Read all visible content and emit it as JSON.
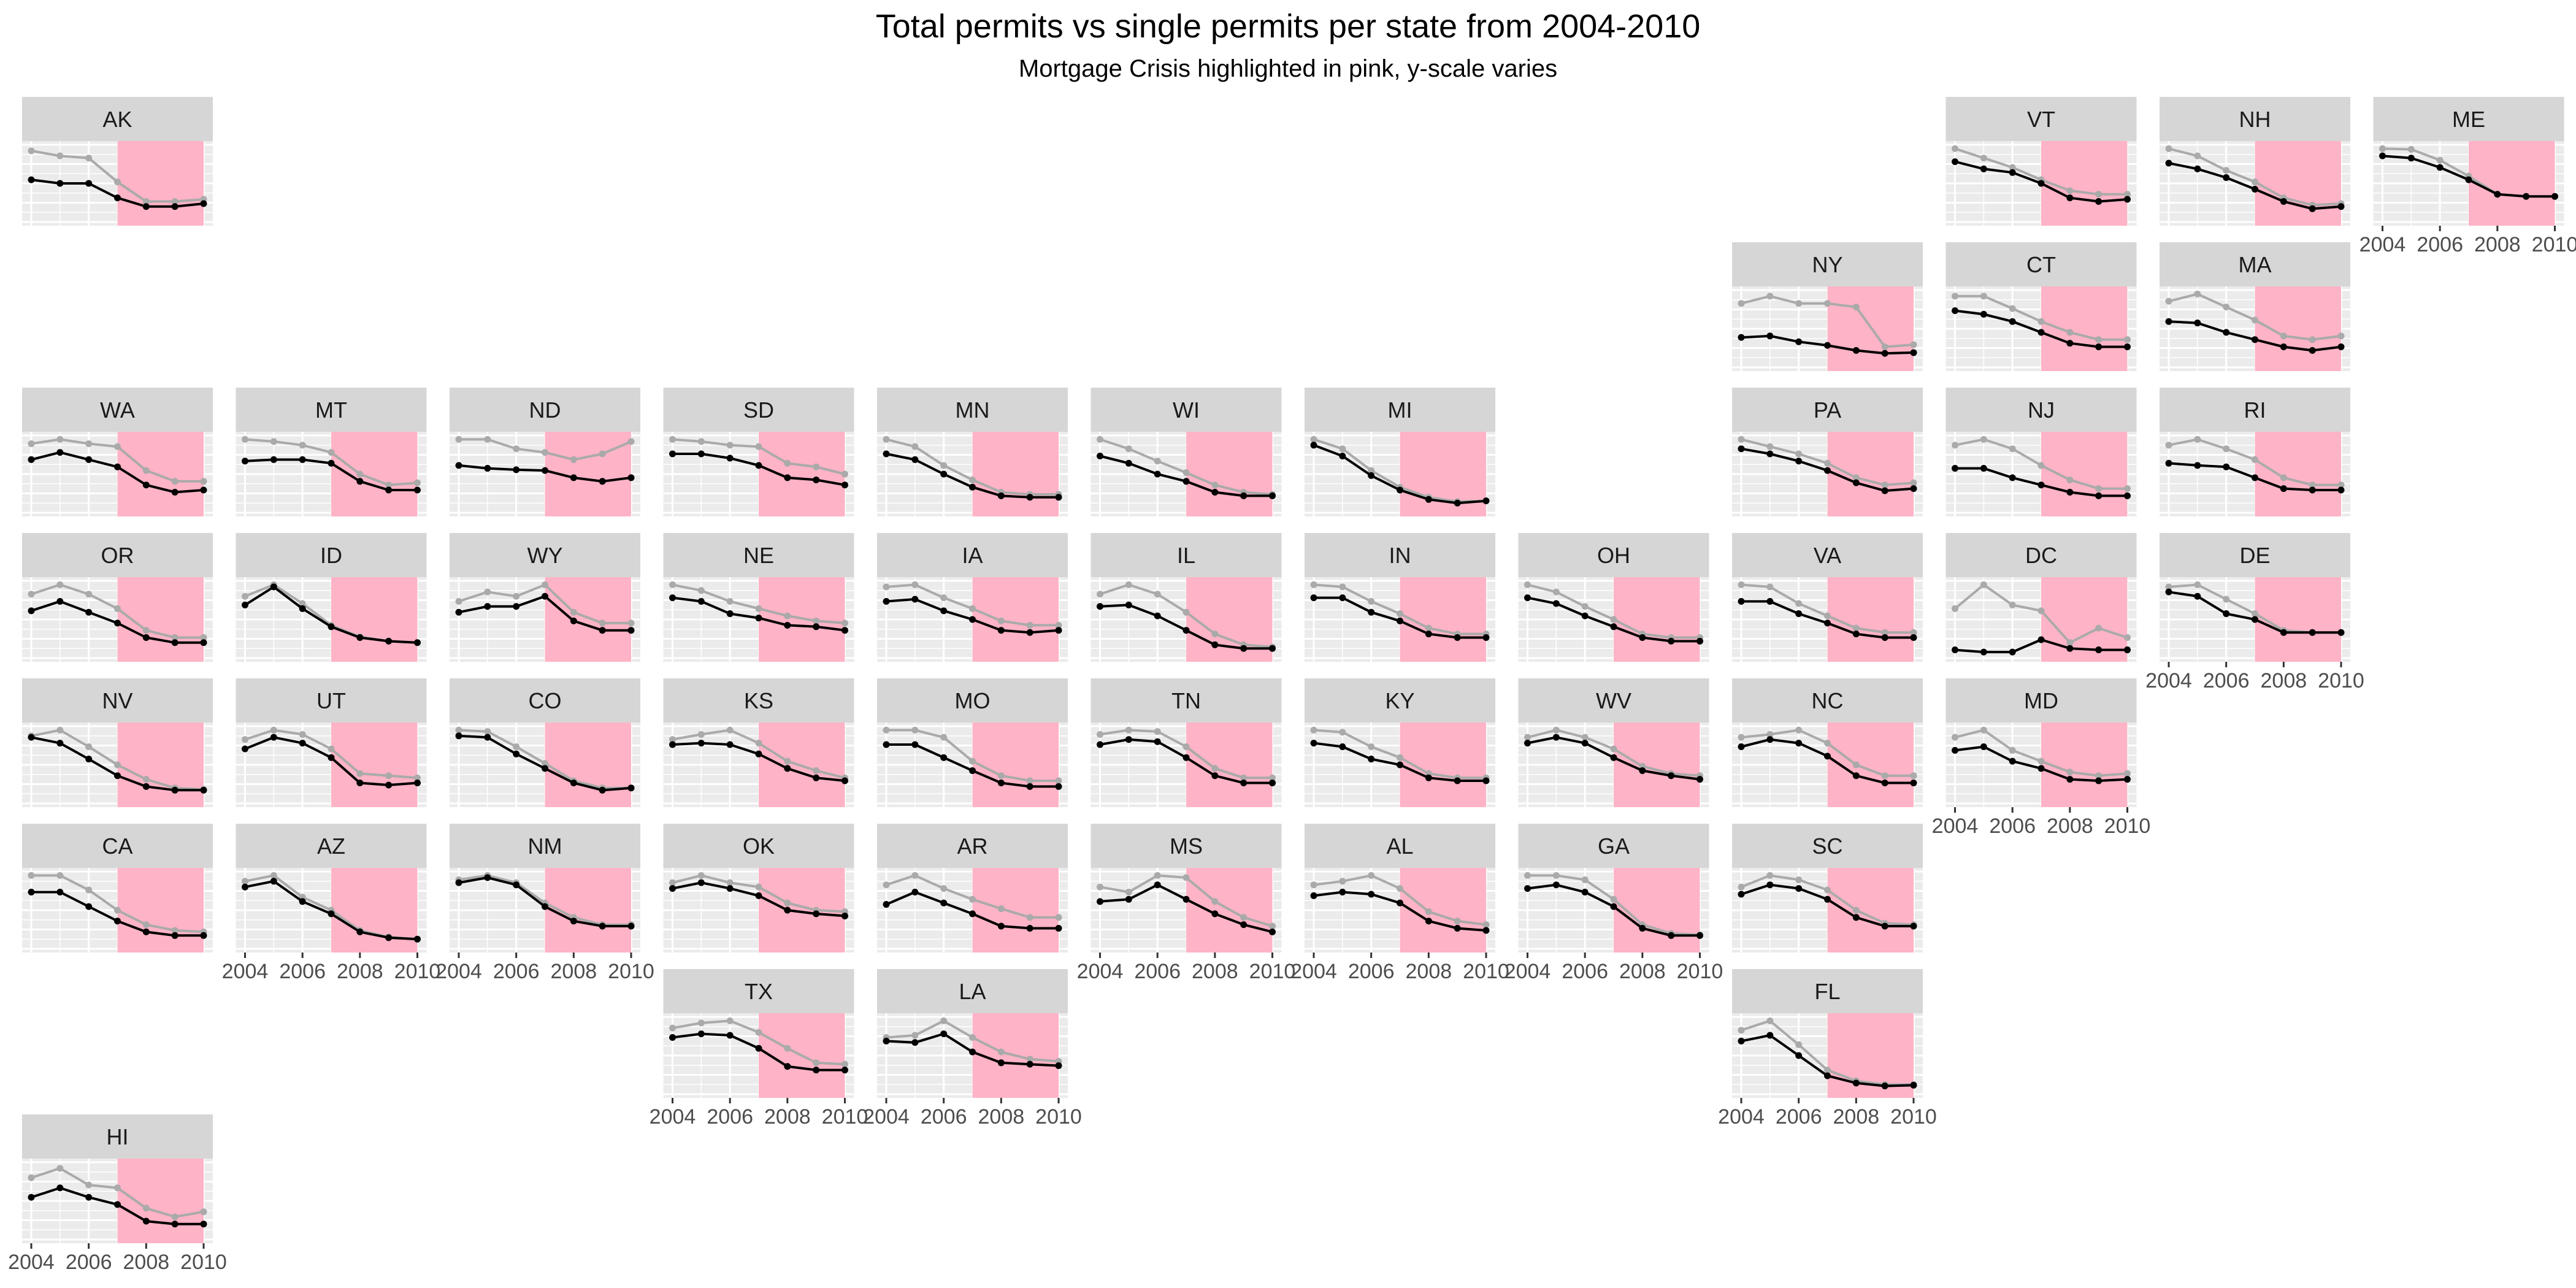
{
  "chart_data": {
    "type": "line",
    "title": "Total permits vs single permits per state from 2004-2010",
    "subtitle": "Mortgage Crisis highlighted in pink, y-scale varies",
    "x": [
      2004,
      2005,
      2006,
      2007,
      2008,
      2009,
      2010
    ],
    "x_tick_labels": [
      "2004",
      "2006",
      "2008",
      "2010"
    ],
    "highlight_range": [
      2007,
      2010
    ],
    "series": [
      {
        "color": "#000000"
      },
      {
        "color": "#aaaaaa"
      }
    ],
    "panels": [
      {
        "state": "AK",
        "single": [
          0.55,
          0.5,
          0.5,
          0.3,
          0.18,
          0.18,
          0.22
        ],
        "total": [
          0.95,
          0.88,
          0.85,
          0.52,
          0.25,
          0.25,
          0.28
        ],
        "x_ticks": false
      },
      {
        "state": "VT",
        "single": [
          0.8,
          0.7,
          0.65,
          0.5,
          0.3,
          0.25,
          0.28
        ],
        "total": [
          0.98,
          0.85,
          0.72,
          0.55,
          0.4,
          0.35,
          0.35
        ],
        "x_ticks": false
      },
      {
        "state": "NH",
        "single": [
          0.78,
          0.7,
          0.58,
          0.42,
          0.25,
          0.15,
          0.18
        ],
        "total": [
          0.98,
          0.88,
          0.68,
          0.52,
          0.3,
          0.2,
          0.22
        ],
        "x_ticks": false
      },
      {
        "state": "ME",
        "single": [
          0.88,
          0.85,
          0.72,
          0.55,
          0.35,
          0.32,
          0.32
        ],
        "total": [
          0.98,
          0.97,
          0.82,
          0.6,
          0.35,
          0.32,
          0.32
        ],
        "x_ticks": true
      },
      {
        "state": "NY",
        "single": [
          0.38,
          0.4,
          0.32,
          0.27,
          0.2,
          0.16,
          0.17
        ],
        "total": [
          0.85,
          0.95,
          0.85,
          0.85,
          0.8,
          0.25,
          0.28
        ],
        "x_ticks": false
      },
      {
        "state": "CT",
        "single": [
          0.75,
          0.7,
          0.6,
          0.45,
          0.3,
          0.25,
          0.25
        ],
        "total": [
          0.95,
          0.95,
          0.78,
          0.6,
          0.45,
          0.35,
          0.35
        ],
        "x_ticks": false
      },
      {
        "state": "MA",
        "single": [
          0.6,
          0.58,
          0.45,
          0.35,
          0.25,
          0.2,
          0.25
        ],
        "total": [
          0.88,
          0.98,
          0.8,
          0.62,
          0.4,
          0.35,
          0.4
        ],
        "x_ticks": false
      },
      {
        "state": "WA",
        "single": [
          0.7,
          0.8,
          0.7,
          0.6,
          0.35,
          0.25,
          0.28
        ],
        "total": [
          0.92,
          0.98,
          0.92,
          0.88,
          0.55,
          0.4,
          0.4
        ],
        "x_ticks": false
      },
      {
        "state": "MT",
        "single": [
          0.68,
          0.7,
          0.7,
          0.65,
          0.4,
          0.28,
          0.28
        ],
        "total": [
          0.98,
          0.95,
          0.9,
          0.8,
          0.5,
          0.35,
          0.38
        ],
        "x_ticks": false
      },
      {
        "state": "ND",
        "single": [
          0.62,
          0.58,
          0.56,
          0.55,
          0.45,
          0.4,
          0.45
        ],
        "total": [
          0.98,
          0.98,
          0.85,
          0.8,
          0.7,
          0.78,
          0.95
        ],
        "x_ticks": false
      },
      {
        "state": "SD",
        "single": [
          0.78,
          0.78,
          0.72,
          0.62,
          0.45,
          0.42,
          0.35
        ],
        "total": [
          0.98,
          0.95,
          0.9,
          0.88,
          0.65,
          0.6,
          0.5
        ],
        "x_ticks": false
      },
      {
        "state": "MN",
        "single": [
          0.78,
          0.7,
          0.5,
          0.32,
          0.2,
          0.18,
          0.18
        ],
        "total": [
          0.98,
          0.88,
          0.62,
          0.42,
          0.25,
          0.22,
          0.22
        ],
        "x_ticks": false
      },
      {
        "state": "WI",
        "single": [
          0.75,
          0.65,
          0.5,
          0.4,
          0.25,
          0.2,
          0.2
        ],
        "total": [
          0.98,
          0.85,
          0.68,
          0.52,
          0.35,
          0.25,
          0.22
        ],
        "x_ticks": false
      },
      {
        "state": "MI",
        "single": [
          0.9,
          0.75,
          0.48,
          0.28,
          0.15,
          0.1,
          0.13
        ],
        "total": [
          0.98,
          0.85,
          0.55,
          0.32,
          0.18,
          0.12,
          0.13
        ],
        "x_ticks": false
      },
      {
        "state": "PA",
        "single": [
          0.85,
          0.78,
          0.68,
          0.55,
          0.38,
          0.27,
          0.3
        ],
        "total": [
          0.98,
          0.88,
          0.78,
          0.65,
          0.45,
          0.35,
          0.38
        ],
        "x_ticks": false
      },
      {
        "state": "NJ",
        "single": [
          0.58,
          0.58,
          0.45,
          0.35,
          0.25,
          0.2,
          0.2
        ],
        "total": [
          0.9,
          0.98,
          0.85,
          0.62,
          0.42,
          0.3,
          0.3
        ],
        "x_ticks": false
      },
      {
        "state": "RI",
        "single": [
          0.65,
          0.62,
          0.6,
          0.45,
          0.3,
          0.28,
          0.28
        ],
        "total": [
          0.9,
          0.98,
          0.85,
          0.7,
          0.45,
          0.35,
          0.35
        ],
        "x_ticks": false
      },
      {
        "state": "OR",
        "single": [
          0.62,
          0.75,
          0.6,
          0.45,
          0.25,
          0.18,
          0.18
        ],
        "total": [
          0.85,
          0.98,
          0.85,
          0.65,
          0.35,
          0.25,
          0.25
        ],
        "x_ticks": false
      },
      {
        "state": "ID",
        "single": [
          0.7,
          0.95,
          0.65,
          0.4,
          0.25,
          0.2,
          0.18
        ],
        "total": [
          0.82,
          0.98,
          0.72,
          0.42,
          0.26,
          0.2,
          0.18
        ],
        "x_ticks": false
      },
      {
        "state": "WY",
        "single": [
          0.6,
          0.68,
          0.68,
          0.82,
          0.48,
          0.35,
          0.35
        ],
        "total": [
          0.75,
          0.88,
          0.82,
          0.98,
          0.6,
          0.45,
          0.45
        ],
        "x_ticks": false
      },
      {
        "state": "NE",
        "single": [
          0.8,
          0.75,
          0.58,
          0.52,
          0.42,
          0.4,
          0.35
        ],
        "total": [
          0.98,
          0.9,
          0.75,
          0.65,
          0.55,
          0.48,
          0.45
        ],
        "x_ticks": false
      },
      {
        "state": "IA",
        "single": [
          0.75,
          0.78,
          0.62,
          0.5,
          0.35,
          0.32,
          0.35
        ],
        "total": [
          0.95,
          0.98,
          0.8,
          0.65,
          0.48,
          0.42,
          0.42
        ],
        "x_ticks": false
      },
      {
        "state": "IL",
        "single": [
          0.68,
          0.7,
          0.55,
          0.35,
          0.15,
          0.1,
          0.1
        ],
        "total": [
          0.85,
          0.98,
          0.85,
          0.6,
          0.3,
          0.15,
          0.12
        ],
        "x_ticks": false
      },
      {
        "state": "IN",
        "single": [
          0.8,
          0.8,
          0.6,
          0.48,
          0.3,
          0.25,
          0.25
        ],
        "total": [
          0.98,
          0.95,
          0.75,
          0.58,
          0.38,
          0.3,
          0.3
        ],
        "x_ticks": false
      },
      {
        "state": "OH",
        "single": [
          0.8,
          0.72,
          0.55,
          0.4,
          0.25,
          0.2,
          0.2
        ],
        "total": [
          0.98,
          0.88,
          0.68,
          0.5,
          0.3,
          0.25,
          0.25
        ],
        "x_ticks": false
      },
      {
        "state": "VA",
        "single": [
          0.75,
          0.75,
          0.58,
          0.45,
          0.3,
          0.25,
          0.25
        ],
        "total": [
          0.98,
          0.95,
          0.72,
          0.55,
          0.38,
          0.32,
          0.32
        ],
        "x_ticks": false
      },
      {
        "state": "DC",
        "single": [
          0.08,
          0.05,
          0.05,
          0.22,
          0.1,
          0.08,
          0.08
        ],
        "total": [
          0.65,
          0.98,
          0.7,
          0.62,
          0.18,
          0.38,
          0.25
        ],
        "x_ticks": false
      },
      {
        "state": "DE",
        "single": [
          0.88,
          0.82,
          0.58,
          0.5,
          0.32,
          0.32,
          0.32
        ],
        "total": [
          0.95,
          0.98,
          0.78,
          0.58,
          0.35,
          0.32,
          0.32
        ],
        "x_ticks": true
      },
      {
        "state": "NV",
        "single": [
          0.88,
          0.8,
          0.58,
          0.35,
          0.2,
          0.15,
          0.15
        ],
        "total": [
          0.9,
          0.98,
          0.75,
          0.5,
          0.3,
          0.18,
          0.16
        ],
        "x_ticks": false
      },
      {
        "state": "UT",
        "single": [
          0.72,
          0.88,
          0.8,
          0.6,
          0.25,
          0.22,
          0.25
        ],
        "total": [
          0.85,
          0.98,
          0.92,
          0.72,
          0.38,
          0.35,
          0.32
        ],
        "x_ticks": false
      },
      {
        "state": "CO",
        "single": [
          0.9,
          0.88,
          0.65,
          0.45,
          0.25,
          0.15,
          0.18
        ],
        "total": [
          0.98,
          0.96,
          0.75,
          0.52,
          0.28,
          0.18,
          0.18
        ],
        "x_ticks": false
      },
      {
        "state": "KS",
        "single": [
          0.78,
          0.8,
          0.78,
          0.65,
          0.45,
          0.32,
          0.28
        ],
        "total": [
          0.85,
          0.92,
          0.98,
          0.8,
          0.55,
          0.42,
          0.32
        ],
        "x_ticks": false
      },
      {
        "state": "MO",
        "single": [
          0.78,
          0.78,
          0.6,
          0.42,
          0.25,
          0.2,
          0.2
        ],
        "total": [
          0.98,
          0.98,
          0.88,
          0.55,
          0.35,
          0.28,
          0.28
        ],
        "x_ticks": false
      },
      {
        "state": "TN",
        "single": [
          0.78,
          0.85,
          0.82,
          0.6,
          0.35,
          0.25,
          0.25
        ],
        "total": [
          0.92,
          0.98,
          0.96,
          0.75,
          0.45,
          0.32,
          0.32
        ],
        "x_ticks": false
      },
      {
        "state": "KY",
        "single": [
          0.8,
          0.75,
          0.58,
          0.5,
          0.32,
          0.28,
          0.28
        ],
        "total": [
          0.98,
          0.95,
          0.75,
          0.6,
          0.38,
          0.32,
          0.32
        ],
        "x_ticks": false
      },
      {
        "state": "WV",
        "single": [
          0.8,
          0.88,
          0.8,
          0.6,
          0.42,
          0.35,
          0.3
        ],
        "total": [
          0.88,
          0.98,
          0.88,
          0.72,
          0.48,
          0.38,
          0.35
        ],
        "x_ticks": false
      },
      {
        "state": "NC",
        "single": [
          0.75,
          0.85,
          0.8,
          0.62,
          0.35,
          0.25,
          0.25
        ],
        "total": [
          0.88,
          0.92,
          0.98,
          0.8,
          0.5,
          0.35,
          0.35
        ],
        "x_ticks": false
      },
      {
        "state": "MD",
        "single": [
          0.7,
          0.75,
          0.55,
          0.45,
          0.3,
          0.28,
          0.3
        ],
        "total": [
          0.88,
          0.98,
          0.7,
          0.55,
          0.4,
          0.35,
          0.38
        ],
        "x_ticks": true
      },
      {
        "state": "CA",
        "single": [
          0.75,
          0.75,
          0.55,
          0.35,
          0.2,
          0.15,
          0.15
        ],
        "total": [
          0.98,
          0.98,
          0.78,
          0.5,
          0.3,
          0.22,
          0.2
        ],
        "x_ticks": false
      },
      {
        "state": "AZ",
        "single": [
          0.82,
          0.9,
          0.62,
          0.45,
          0.2,
          0.12,
          0.1
        ],
        "total": [
          0.9,
          0.98,
          0.68,
          0.5,
          0.22,
          0.13,
          0.1
        ],
        "x_ticks": true
      },
      {
        "state": "NM",
        "single": [
          0.88,
          0.95,
          0.85,
          0.55,
          0.35,
          0.28,
          0.28
        ],
        "total": [
          0.92,
          0.98,
          0.88,
          0.6,
          0.4,
          0.3,
          0.3
        ],
        "x_ticks": true
      },
      {
        "state": "OK",
        "single": [
          0.8,
          0.88,
          0.8,
          0.7,
          0.5,
          0.45,
          0.42
        ],
        "total": [
          0.88,
          0.98,
          0.88,
          0.82,
          0.6,
          0.5,
          0.48
        ],
        "x_ticks": false
      },
      {
        "state": "AR",
        "single": [
          0.58,
          0.75,
          0.6,
          0.45,
          0.28,
          0.25,
          0.25
        ],
        "total": [
          0.85,
          0.98,
          0.8,
          0.65,
          0.52,
          0.4,
          0.4
        ],
        "x_ticks": false
      },
      {
        "state": "MS",
        "single": [
          0.62,
          0.65,
          0.85,
          0.65,
          0.45,
          0.3,
          0.2
        ],
        "total": [
          0.82,
          0.75,
          0.98,
          0.95,
          0.62,
          0.4,
          0.28
        ],
        "x_ticks": true
      },
      {
        "state": "AL",
        "single": [
          0.7,
          0.75,
          0.72,
          0.6,
          0.35,
          0.25,
          0.22
        ],
        "total": [
          0.85,
          0.9,
          0.98,
          0.8,
          0.48,
          0.35,
          0.3
        ],
        "x_ticks": true
      },
      {
        "state": "GA",
        "single": [
          0.8,
          0.85,
          0.75,
          0.55,
          0.25,
          0.15,
          0.15
        ],
        "total": [
          0.98,
          0.98,
          0.92,
          0.65,
          0.3,
          0.18,
          0.16
        ],
        "x_ticks": true
      },
      {
        "state": "SC",
        "single": [
          0.72,
          0.85,
          0.8,
          0.65,
          0.4,
          0.28,
          0.28
        ],
        "total": [
          0.82,
          0.98,
          0.92,
          0.78,
          0.5,
          0.32,
          0.3
        ],
        "x_ticks": false
      },
      {
        "state": "TX",
        "single": [
          0.75,
          0.8,
          0.78,
          0.6,
          0.35,
          0.3,
          0.3
        ],
        "total": [
          0.88,
          0.95,
          0.98,
          0.82,
          0.6,
          0.4,
          0.38
        ],
        "x_ticks": true
      },
      {
        "state": "LA",
        "single": [
          0.7,
          0.68,
          0.8,
          0.55,
          0.4,
          0.38,
          0.36
        ],
        "total": [
          0.75,
          0.78,
          0.98,
          0.75,
          0.55,
          0.45,
          0.42
        ],
        "x_ticks": true
      },
      {
        "state": "FL",
        "single": [
          0.7,
          0.78,
          0.5,
          0.22,
          0.12,
          0.08,
          0.09
        ],
        "total": [
          0.85,
          0.98,
          0.65,
          0.3,
          0.15,
          0.1,
          0.1
        ],
        "x_ticks": true
      },
      {
        "state": "HI",
        "single": [
          0.55,
          0.68,
          0.55,
          0.45,
          0.22,
          0.18,
          0.18
        ],
        "total": [
          0.82,
          0.95,
          0.72,
          0.68,
          0.4,
          0.28,
          0.35
        ],
        "x_ticks": true
      }
    ]
  }
}
